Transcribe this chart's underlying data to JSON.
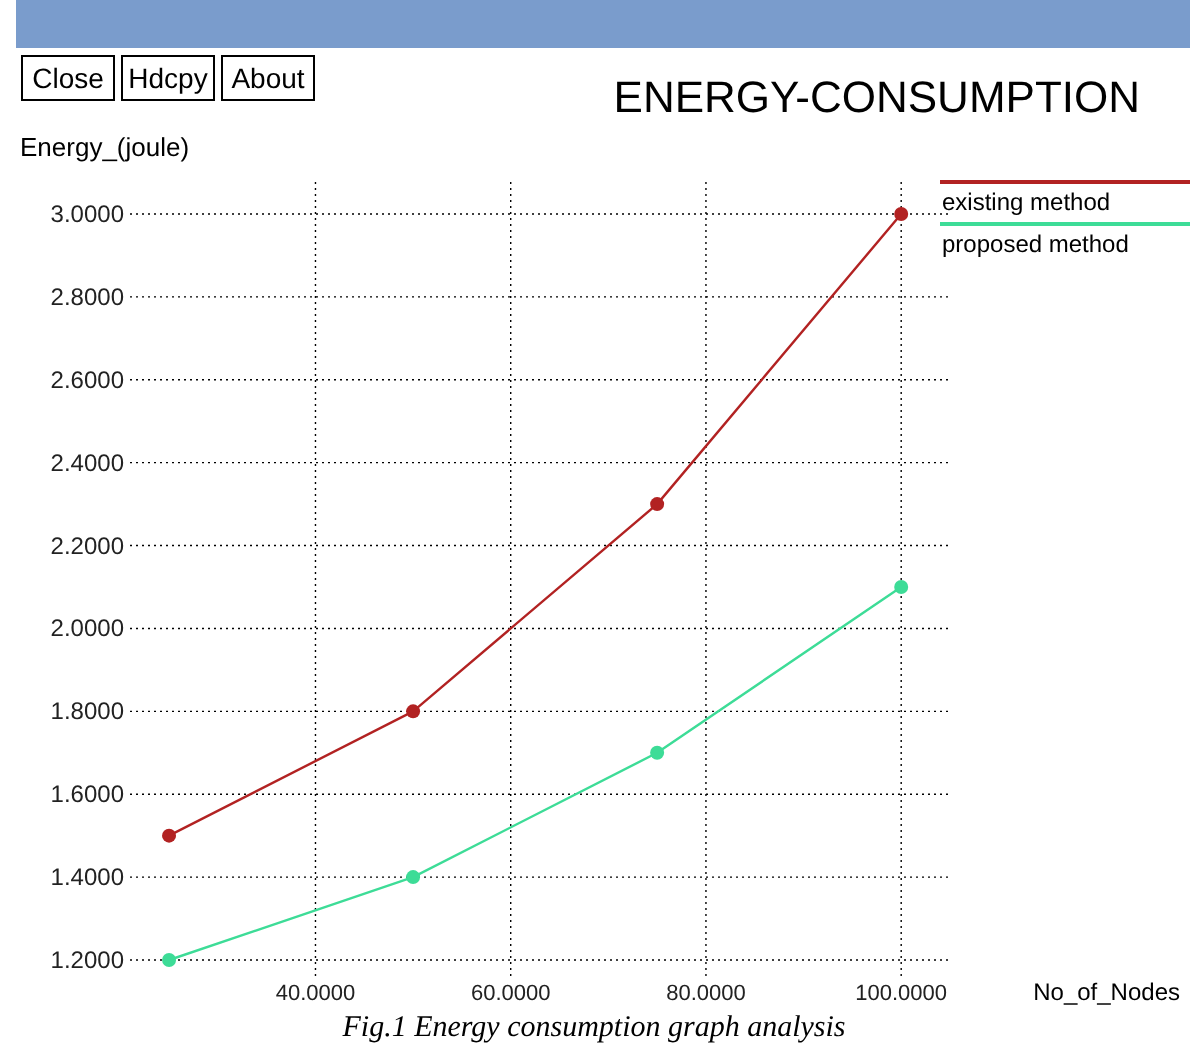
{
  "chart_data": {
    "type": "line",
    "title": "ENERGY-CONSUMPTION",
    "xlabel": "No_of_Nodes",
    "ylabel": "Energy_(joule)",
    "x": [
      25,
      50,
      75,
      100
    ],
    "series": [
      {
        "name": "existing method",
        "color": "#b22222",
        "values": [
          1.5,
          1.8,
          2.3,
          3.0
        ]
      },
      {
        "name": "proposed method",
        "color": "#3ddc97",
        "values": [
          1.2,
          1.4,
          1.7,
          2.1
        ]
      }
    ],
    "xlim": [
      21,
      105
    ],
    "xticks": [
      {
        "value": 40,
        "label": "40.0000"
      },
      {
        "value": 60,
        "label": "60.0000"
      },
      {
        "value": 80,
        "label": "80.0000"
      },
      {
        "value": 100,
        "label": "100.0000"
      }
    ],
    "ylim": [
      1.2,
      3.0
    ],
    "yticks": [
      {
        "value": 1.2,
        "label": "1.2000"
      },
      {
        "value": 1.4,
        "label": "1.4000"
      },
      {
        "value": 1.6,
        "label": "1.6000"
      },
      {
        "value": 1.8,
        "label": "1.8000"
      },
      {
        "value": 2.0,
        "label": "2.0000"
      },
      {
        "value": 2.2,
        "label": "2.2000"
      },
      {
        "value": 2.4,
        "label": "2.4000"
      },
      {
        "value": 2.6,
        "label": "2.6000"
      },
      {
        "value": 2.8,
        "label": "2.8000"
      },
      {
        "value": 3.0,
        "label": "3.0000"
      }
    ],
    "grid": true,
    "legend": "top right",
    "marker": "circle",
    "line_style": "solid",
    "annotations": [
      "Close",
      "Hdcpy",
      "About",
      "Fig.1 Energy consumption graph analysis"
    ]
  }
}
